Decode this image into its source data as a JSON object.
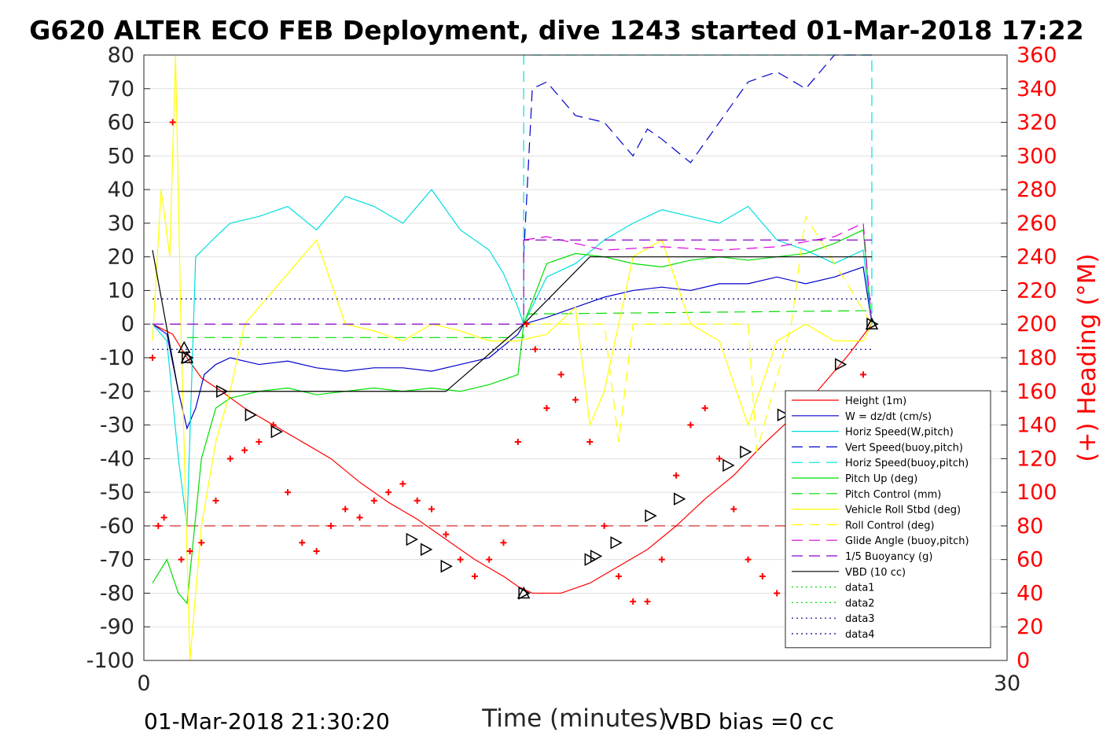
{
  "chart_data": {
    "type": "line",
    "title": "G620 ALTER ECO FEB Deployment, dive 1243 started 01-Mar-2018 17:22",
    "xlabel": "Time (minutes)",
    "ylabel_right": "(+) Heading (°M)",
    "xlim": [
      0,
      30
    ],
    "ylim_left": [
      -100,
      80
    ],
    "ylim_right": [
      0,
      360
    ],
    "x_ticks": [
      "0",
      "30"
    ],
    "y_ticks_left": [
      "80",
      "70",
      "60",
      "50",
      "40",
      "30",
      "20",
      "10",
      "0",
      "-10",
      "-20",
      "-30",
      "-40",
      "-50",
      "-60",
      "-70",
      "-80",
      "-90",
      "-100"
    ],
    "y_ticks_right": [
      "360",
      "340",
      "320",
      "300",
      "280",
      "260",
      "240",
      "220",
      "200",
      "180",
      "160",
      "140",
      "120",
      "100",
      "80",
      "60",
      "40",
      "20",
      "0"
    ],
    "grid": "horizontal",
    "legend_position": "bottom-right",
    "footer_left": "01-Mar-2018 21:30:20",
    "footer_right": "VBD bias =0 cc",
    "series": [
      {
        "name": "Height (1m)",
        "color": "#ff0000",
        "style": "solid",
        "x": [
          0.3,
          1,
          1.5,
          2,
          2.7,
          3.5,
          4.5,
          5.5,
          6.5,
          7.5,
          8.5,
          9.5,
          10.5,
          11.5,
          12.5,
          13,
          13.5,
          14.5,
          15.5,
          16.5,
          17.5,
          18.5,
          19.5,
          20.5,
          21.5,
          22.5,
          23.5,
          24.5,
          25.3
        ],
        "y": [
          0,
          -3,
          -10,
          -16,
          -20,
          -25,
          -30,
          -35,
          -40,
          -47,
          -53,
          -58,
          -64,
          -70,
          -75,
          -78,
          -80,
          -80,
          -77,
          -72,
          -67,
          -60,
          -52,
          -45,
          -36,
          -28,
          -19,
          -9,
          0
        ]
      },
      {
        "name": "W = dz/dt (cm/s)",
        "color": "#0000cc",
        "style": "solid",
        "x": [
          0.3,
          0.8,
          1.2,
          1.5,
          1.8,
          2.1,
          2.5,
          3,
          4,
          5,
          6,
          7,
          8,
          9,
          10,
          11,
          12,
          13,
          13.2,
          14,
          15,
          16,
          17,
          18,
          19,
          20,
          21,
          22,
          23,
          24,
          25,
          25.3
        ],
        "y": [
          0,
          -3,
          -20,
          -31,
          -25,
          -15,
          -12,
          -10,
          -12,
          -11,
          -13,
          -14,
          -13,
          -13,
          -14,
          -12,
          -10,
          -3,
          0,
          2,
          5,
          8,
          10,
          11,
          10,
          12,
          12,
          14,
          12,
          14,
          17,
          0
        ]
      },
      {
        "name": "Horiz Speed(W,pitch)",
        "color": "#00dddd",
        "style": "solid",
        "x": [
          0.3,
          0.8,
          1.2,
          1.5,
          1.8,
          2.5,
          3,
          4,
          5,
          6,
          7,
          8,
          9,
          10,
          11,
          12,
          12.5,
          13,
          13.2,
          14,
          15,
          16,
          17,
          18,
          19,
          20,
          21,
          22,
          23,
          24,
          25,
          25.3
        ],
        "y": [
          0,
          -5,
          -40,
          -60,
          20,
          26,
          30,
          32,
          35,
          28,
          38,
          35,
          30,
          40,
          28,
          22,
          15,
          5,
          0,
          14,
          18,
          25,
          30,
          34,
          32,
          30,
          35,
          25,
          22,
          18,
          22,
          0
        ]
      },
      {
        "name": "Vert Speed(buoy,pitch)",
        "color": "#0000cc",
        "style": "dashed",
        "x": [
          13.2,
          13.5,
          14,
          15,
          16,
          17,
          17.5,
          18,
          19,
          20,
          21,
          22,
          23,
          24,
          24.5,
          25.3
        ],
        "y": [
          20,
          70,
          72,
          62,
          60,
          50,
          58,
          55,
          48,
          60,
          72,
          75,
          70,
          80,
          80,
          80
        ]
      },
      {
        "name": "Horiz Speed(buoy,pitch)",
        "color": "#00dddd",
        "style": "dashed",
        "x": [
          13.2,
          13.2,
          25.3,
          25.3
        ],
        "y": [
          0,
          80,
          80,
          0
        ]
      },
      {
        "name": "Pitch Up (deg)",
        "color": "#00dd00",
        "style": "solid",
        "x": [
          0.3,
          0.8,
          1.2,
          1.5,
          2,
          2.5,
          3,
          4,
          5,
          6,
          7,
          8,
          9,
          10,
          11,
          12,
          13,
          13.2,
          14,
          15,
          16,
          17,
          18,
          19,
          20,
          21,
          22,
          23,
          24,
          25,
          25.3
        ],
        "y": [
          -77,
          -70,
          -80,
          -83,
          -40,
          -25,
          -22,
          -20,
          -19,
          -21,
          -20,
          -19,
          -20,
          -19,
          -20,
          -18,
          -15,
          0,
          18,
          21,
          20,
          18,
          17,
          19,
          20,
          19,
          20,
          21,
          24,
          28,
          0
        ]
      },
      {
        "name": "Pitch Control (mm)",
        "color": "#00dd00",
        "style": "dashed",
        "x": [
          1.5,
          13.2,
          13.2,
          25.3
        ],
        "y": [
          -4,
          -4,
          3,
          4
        ]
      },
      {
        "name": "Vehicle Roll Stbd (deg)",
        "color": "#ffff00",
        "style": "solid",
        "x": [
          0.3,
          0.6,
          0.9,
          1.1,
          1.3,
          1.6,
          2,
          2.5,
          3,
          3.5,
          4,
          5,
          6,
          7,
          8,
          9,
          10,
          11,
          12,
          13,
          14,
          15,
          15.5,
          16,
          16.5,
          17,
          18,
          19,
          20,
          21,
          22,
          23,
          24,
          25,
          25.3
        ],
        "y": [
          -5,
          40,
          20,
          80,
          -5,
          -100,
          -60,
          -35,
          -20,
          0,
          5,
          15,
          25,
          0,
          -2,
          -5,
          0,
          -2,
          -5,
          -5,
          -3,
          5,
          -30,
          -20,
          0,
          20,
          25,
          0,
          -5,
          -30,
          -5,
          0,
          -5,
          -5,
          0
        ]
      },
      {
        "name": "Roll Control (deg)",
        "color": "#ffff00",
        "style": "dashed",
        "x": [
          13.2,
          16,
          16.5,
          17,
          21,
          21.3,
          22.5,
          23,
          25.3
        ],
        "y": [
          0,
          0,
          -35,
          0,
          0,
          -38,
          0,
          32,
          0
        ]
      },
      {
        "name": "Glide Angle (buoy,pitch)",
        "color": "#dd00dd",
        "style": "dashed",
        "x": [
          13.2,
          14,
          16,
          18,
          20,
          22,
          24,
          25,
          25.3
        ],
        "y": [
          25,
          26,
          22,
          23,
          22,
          23,
          26,
          30,
          0
        ]
      },
      {
        "name": "1/5 Buoyancy (g)",
        "color": "#8800cc",
        "style": "dashed",
        "x": [
          0.3,
          13.2,
          13.2,
          25.3
        ],
        "y": [
          0,
          0,
          25,
          25
        ]
      },
      {
        "name": "VBD (10 cc)",
        "color": "#000000",
        "style": "solid",
        "x": [
          0.3,
          1.2,
          2.7,
          10.5,
          13.2,
          15.5,
          25.3
        ],
        "y": [
          22,
          -20,
          -20,
          -20,
          0,
          20,
          20
        ]
      },
      {
        "name": "data1",
        "color": "#00dd00",
        "style": "dotted",
        "x": [],
        "y": []
      },
      {
        "name": "data2",
        "color": "#00dd00",
        "style": "dotted",
        "x": [],
        "y": []
      },
      {
        "name": "data3",
        "color": "#000088",
        "style": "dotted",
        "x": [
          0.3,
          25.3
        ],
        "y": [
          7.5,
          7.5
        ]
      },
      {
        "name": "data4",
        "color": "#000088",
        "style": "dotted",
        "x": [
          0.3,
          25.3
        ],
        "y": [
          -7.5,
          -7.5
        ]
      }
    ],
    "pitch_bias_line": {
      "color": "#cc0000",
      "style": "dashed",
      "y": -60
    },
    "heading": {
      "name": "Heading",
      "color": "#ff0000",
      "axis": "right",
      "x": [
        0.3,
        0.5,
        0.7,
        1,
        1.3,
        1.6,
        2,
        2.5,
        3,
        3.5,
        4,
        4.5,
        5,
        5.5,
        6,
        6.5,
        7,
        7.5,
        8,
        8.5,
        9,
        9.5,
        10,
        10.5,
        11,
        11.5,
        12,
        12.5,
        13,
        13.3,
        13.6,
        14,
        14.5,
        15,
        15.5,
        16,
        16.5,
        17,
        17.5,
        18,
        18.5,
        19,
        19.5,
        20,
        20.5,
        21,
        21.5,
        22,
        22.5,
        23,
        23.5,
        24,
        24.5,
        25
      ],
      "y": [
        180,
        80,
        85,
        320,
        60,
        65,
        70,
        95,
        120,
        125,
        130,
        140,
        100,
        70,
        65,
        80,
        90,
        85,
        95,
        100,
        105,
        95,
        90,
        75,
        60,
        50,
        60,
        70,
        130,
        200,
        185,
        150,
        170,
        155,
        130,
        80,
        50,
        35,
        35,
        60,
        110,
        140,
        150,
        120,
        90,
        60,
        50,
        40,
        70,
        80,
        60,
        50,
        150,
        170
      ]
    },
    "markers": {
      "down_triangles": {
        "x": [
          1.5,
          2.7,
          3.7,
          4.6,
          9.3,
          9.8,
          10.5,
          13.2,
          15.5,
          15.7,
          16.4,
          17.6,
          18.6,
          20.3,
          20.9,
          22.2,
          24.2,
          25.3
        ],
        "y": [
          -10,
          -20,
          -27,
          -32,
          -64,
          -67,
          -72,
          -80,
          -70,
          -69,
          -65,
          -57,
          -52,
          -42,
          -38,
          -27,
          -12,
          0
        ]
      },
      "up_triangles": {
        "x": [
          1.4,
          1.5,
          13.2,
          25.3
        ],
        "y": [
          -7,
          -10,
          -80,
          0
        ]
      }
    }
  }
}
